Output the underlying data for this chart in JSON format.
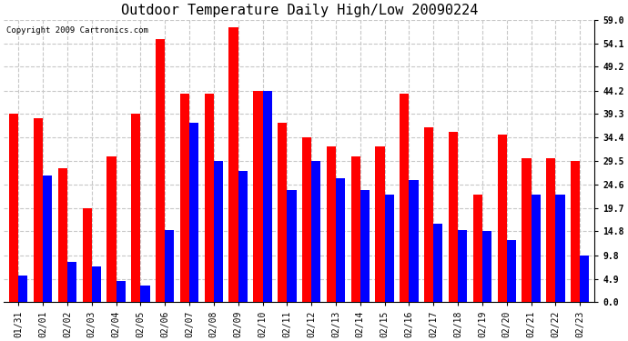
{
  "title": "Outdoor Temperature Daily High/Low 20090224",
  "copyright": "Copyright 2009 Cartronics.com",
  "dates": [
    "01/31",
    "02/01",
    "02/02",
    "02/03",
    "02/04",
    "02/05",
    "02/06",
    "02/07",
    "02/08",
    "02/09",
    "02/10",
    "02/11",
    "02/12",
    "02/13",
    "02/14",
    "02/15",
    "02/16",
    "02/17",
    "02/18",
    "02/19",
    "02/20",
    "02/21",
    "02/22",
    "02/23"
  ],
  "highs": [
    39.3,
    38.5,
    28.0,
    19.7,
    30.5,
    39.3,
    55.0,
    43.5,
    43.5,
    57.5,
    44.2,
    37.5,
    34.5,
    32.5,
    30.5,
    32.5,
    43.5,
    36.5,
    35.5,
    22.5,
    35.0,
    30.0,
    30.0,
    29.5
  ],
  "lows": [
    5.5,
    26.5,
    8.5,
    7.5,
    4.5,
    3.5,
    15.0,
    37.5,
    29.5,
    27.5,
    44.2,
    23.5,
    29.5,
    26.0,
    23.5,
    22.5,
    25.5,
    16.5,
    15.0,
    14.8,
    13.0,
    22.5,
    22.5,
    9.8
  ],
  "high_color": "#FF0000",
  "low_color": "#0000FF",
  "bg_color": "#FFFFFF",
  "plot_bg_color": "#FFFFFF",
  "grid_color": "#C8C8C8",
  "yticks": [
    0.0,
    4.9,
    9.8,
    14.8,
    19.7,
    24.6,
    29.5,
    34.4,
    39.3,
    44.2,
    49.2,
    54.1,
    59.0
  ],
  "ymin": 0.0,
  "ymax": 59.0,
  "bar_width": 0.38,
  "title_fontsize": 11,
  "tick_fontsize": 7,
  "copyright_fontsize": 6.5
}
